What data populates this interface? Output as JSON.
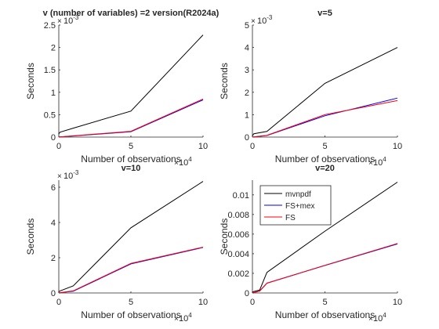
{
  "figure": {
    "background": "#ffffff",
    "axis_color": "#262626"
  },
  "chart_data": [
    {
      "type": "line",
      "title": "v (number of variables) =2 version(R2024a)",
      "xlabel": "Number of observations",
      "ylabel": "Seconds",
      "xlim": [
        0,
        100000
      ],
      "ylim": [
        0,
        0.0025
      ],
      "x_tick_labels": [
        "0",
        "5",
        "10"
      ],
      "x_tick_values": [
        0,
        50000,
        100000
      ],
      "x_exponent_label": "10",
      "x_exponent_power": "4",
      "y_tick_labels": [
        "0",
        "0.5",
        "1",
        "1.5",
        "2",
        "2.5"
      ],
      "y_tick_values": [
        0,
        0.0005,
        0.001,
        0.0015,
        0.002,
        0.0025
      ],
      "y_exponent_label": "10",
      "y_exponent_power": "-3",
      "grid": false,
      "x": [
        0,
        100,
        1000,
        10000,
        50000,
        100000
      ],
      "series": [
        {
          "name": "mvnpdf",
          "color": "#000000",
          "values": [
            6e-05,
            8e-05,
            0.00011,
            0.0002,
            0.00058,
            0.00228
          ]
        },
        {
          "name": "FS+mex",
          "color": "#0000ff",
          "values": [
            2e-06,
            3e-06,
            5e-06,
            2.5e-05,
            0.00012,
            0.00083
          ]
        },
        {
          "name": "FS",
          "color": "#ff0000",
          "values": [
            2e-06,
            3e-06,
            6e-06,
            2.8e-05,
            0.00013,
            0.00085
          ]
        }
      ]
    },
    {
      "type": "line",
      "title": "v=5",
      "xlabel": "Number of observations",
      "ylabel": "Seconds",
      "xlim": [
        0,
        100000
      ],
      "ylim": [
        0,
        0.005
      ],
      "x_tick_labels": [
        "0",
        "5",
        "10"
      ],
      "x_tick_values": [
        0,
        50000,
        100000
      ],
      "x_exponent_label": "10",
      "x_exponent_power": "4",
      "y_tick_labels": [
        "0",
        "1",
        "2",
        "3",
        "4",
        "5"
      ],
      "y_tick_values": [
        0,
        0.001,
        0.002,
        0.003,
        0.004,
        0.005
      ],
      "y_exponent_label": "10",
      "y_exponent_power": "-3",
      "grid": false,
      "x": [
        0,
        100,
        1000,
        10000,
        50000,
        100000
      ],
      "series": [
        {
          "name": "mvnpdf",
          "color": "#000000",
          "values": [
            5e-05,
            7e-05,
            0.00015,
            0.00025,
            0.0024,
            0.004
          ]
        },
        {
          "name": "FS+mex",
          "color": "#0000ff",
          "values": [
            3e-06,
            5e-06,
            1e-05,
            7e-05,
            0.00095,
            0.00174
          ]
        },
        {
          "name": "FS",
          "color": "#ff0000",
          "values": [
            3e-06,
            5e-06,
            1e-05,
            8e-05,
            0.001,
            0.00163
          ]
        }
      ]
    },
    {
      "type": "line",
      "title": "v=10",
      "xlabel": "Number of observations",
      "ylabel": "Seconds",
      "xlim": [
        0,
        100000
      ],
      "ylim": [
        0,
        0.0064
      ],
      "x_tick_labels": [
        "0",
        "5",
        "10"
      ],
      "x_tick_values": [
        0,
        50000,
        100000
      ],
      "x_exponent_label": "10",
      "x_exponent_power": "4",
      "y_tick_labels": [
        "0",
        "2",
        "4",
        "6"
      ],
      "y_tick_values": [
        0,
        0.002,
        0.004,
        0.006
      ],
      "y_exponent_label": "10",
      "y_exponent_power": "-3",
      "grid": false,
      "x": [
        0,
        100,
        1000,
        10000,
        50000,
        100000
      ],
      "series": [
        {
          "name": "mvnpdf",
          "color": "#000000",
          "values": [
            5e-05,
            8e-05,
            0.00012,
            0.0004,
            0.0037,
            0.00633
          ]
        },
        {
          "name": "FS+mex",
          "color": "#0000ff",
          "values": [
            5e-06,
            8e-06,
            2e-05,
            0.0001,
            0.00165,
            0.00258
          ]
        },
        {
          "name": "FS",
          "color": "#ff0000",
          "values": [
            5e-06,
            8e-06,
            2e-05,
            0.00012,
            0.00168,
            0.0026
          ]
        }
      ]
    },
    {
      "type": "line",
      "title": "v=20",
      "xlabel": "Number of observations",
      "ylabel": "Seconds",
      "xlim": [
        0,
        100000
      ],
      "ylim": [
        0,
        0.0115
      ],
      "x_tick_labels": [
        "0",
        "5",
        "10"
      ],
      "x_tick_values": [
        0,
        50000,
        100000
      ],
      "x_exponent_label": "10",
      "x_exponent_power": "4",
      "y_tick_labels": [
        "0",
        "0.002",
        "0.004",
        "0.006",
        "0.008",
        "0.01"
      ],
      "y_tick_values": [
        0,
        0.002,
        0.004,
        0.006,
        0.008,
        0.01
      ],
      "grid": false,
      "legend": {
        "position": "top-left",
        "entries": [
          {
            "label": "mvnpdf",
            "color": "#000000"
          },
          {
            "label": "FS+mex",
            "color": "#0000ff"
          },
          {
            "label": "FS",
            "color": "#ff0000"
          }
        ]
      },
      "x": [
        0,
        100,
        1000,
        5000,
        10000,
        50000,
        100000
      ],
      "series": [
        {
          "name": "mvnpdf",
          "color": "#000000",
          "values": [
            5e-05,
            8e-05,
            0.00015,
            0.0003,
            0.0021,
            0.0063,
            0.0113
          ]
        },
        {
          "name": "FS+mex",
          "color": "#0000ff",
          "values": [
            1e-05,
            2e-05,
            4e-05,
            0.0002,
            0.001,
            0.0028,
            0.005
          ]
        },
        {
          "name": "FS",
          "color": "#ff0000",
          "values": [
            1e-05,
            2e-05,
            4e-05,
            0.0002,
            0.001,
            0.00282,
            0.00505
          ]
        }
      ]
    }
  ]
}
